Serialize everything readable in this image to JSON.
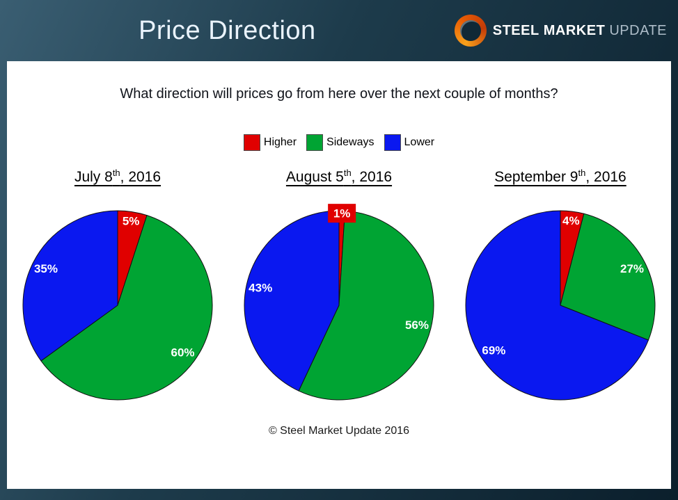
{
  "header": {
    "title": "Price Direction",
    "logo": {
      "steel": "STEEL",
      "market": "MARKET",
      "update": "UPDATE"
    }
  },
  "question": "What direction will prices go from here over the next couple of months?",
  "legend": [
    {
      "label": "Higher",
      "color": "#e00000"
    },
    {
      "label": "Sideways",
      "color": "#00a433"
    },
    {
      "label": "Lower",
      "color": "#0a18f0"
    }
  ],
  "footer": "© Steel Market Update 2016",
  "chart_data": [
    {
      "type": "pie",
      "title": "July 8th, 2016",
      "date_parts": {
        "main": "July 8",
        "sup": "th",
        "rest": ", 2016"
      },
      "slices": [
        {
          "label": "Higher",
          "value": 5
        },
        {
          "label": "Sideways",
          "value": 60
        },
        {
          "label": "Lower",
          "value": 35
        }
      ],
      "start_angle_deg": 0,
      "direction": "clockwise",
      "label_format": "percent",
      "data_label_style": "white bold inside"
    },
    {
      "type": "pie",
      "title": "August 5th, 2016",
      "date_parts": {
        "main": "August 5",
        "sup": "th",
        "rest": ", 2016"
      },
      "slices": [
        {
          "label": "Higher",
          "value": 1
        },
        {
          "label": "Sideways",
          "value": 56
        },
        {
          "label": "Lower",
          "value": 43
        }
      ],
      "start_angle_deg": 0,
      "direction": "clockwise",
      "label_format": "percent",
      "data_label_style": "white bold inside; 1% in red callout box at top"
    },
    {
      "type": "pie",
      "title": "September 9th, 2016",
      "date_parts": {
        "main": "September 9",
        "sup": "th",
        "rest": ", 2016"
      },
      "slices": [
        {
          "label": "Higher",
          "value": 4
        },
        {
          "label": "Sideways",
          "value": 27
        },
        {
          "label": "Lower",
          "value": 69
        }
      ],
      "start_angle_deg": 0,
      "direction": "clockwise",
      "label_format": "percent",
      "data_label_style": "white bold inside"
    }
  ]
}
